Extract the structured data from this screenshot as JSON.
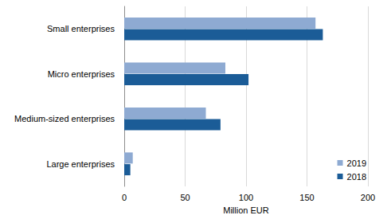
{
  "chart_data": {
    "type": "bar",
    "orientation": "horizontal",
    "categories": [
      "Small enterprises",
      "Micro enterprises",
      "Medium-sized enterprises",
      "Large enterprises"
    ],
    "series": [
      {
        "name": "2019",
        "color": "#8eaad2",
        "values": [
          157,
          83,
          67,
          7
        ]
      },
      {
        "name": "2018",
        "color": "#1b5c97",
        "values": [
          163,
          102,
          79,
          5
        ]
      }
    ],
    "x_label": "Million EUR",
    "xlim": [
      0,
      200
    ],
    "xticks": [
      0,
      50,
      100,
      150,
      200
    ],
    "grid": true,
    "legend": "lower right"
  }
}
